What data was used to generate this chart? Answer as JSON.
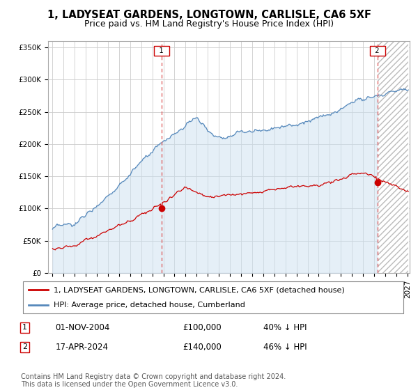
{
  "title": "1, LADYSEAT GARDENS, LONGTOWN, CARLISLE, CA6 5XF",
  "subtitle": "Price paid vs. HM Land Registry's House Price Index (HPI)",
  "ylim": [
    0,
    360000
  ],
  "yticks": [
    0,
    50000,
    100000,
    150000,
    200000,
    250000,
    300000,
    350000
  ],
  "ytick_labels": [
    "£0",
    "£50K",
    "£100K",
    "£150K",
    "£200K",
    "£250K",
    "£300K",
    "£350K"
  ],
  "sale1_date_num": 2004.83,
  "sale1_price": 100000,
  "sale2_date_num": 2024.29,
  "sale2_price": 140000,
  "hpi_color": "#5588bb",
  "hpi_fill_color": "#cce0f0",
  "sale_color": "#cc0000",
  "dashed_line_color": "#dd5555",
  "legend_label_sale": "1, LADYSEAT GARDENS, LONGTOWN, CARLISLE, CA6 5XF (detached house)",
  "legend_label_hpi": "HPI: Average price, detached house, Cumberland",
  "footer": "Contains HM Land Registry data © Crown copyright and database right 2024.\nThis data is licensed under the Open Government Licence v3.0.",
  "background_color": "#ffffff",
  "grid_color": "#cccccc",
  "hatch_color": "#aaaaaa",
  "title_fontsize": 10.5,
  "subtitle_fontsize": 9,
  "tick_fontsize": 7.5,
  "legend_fontsize": 8,
  "annot_fontsize": 8.5,
  "footer_fontsize": 7
}
